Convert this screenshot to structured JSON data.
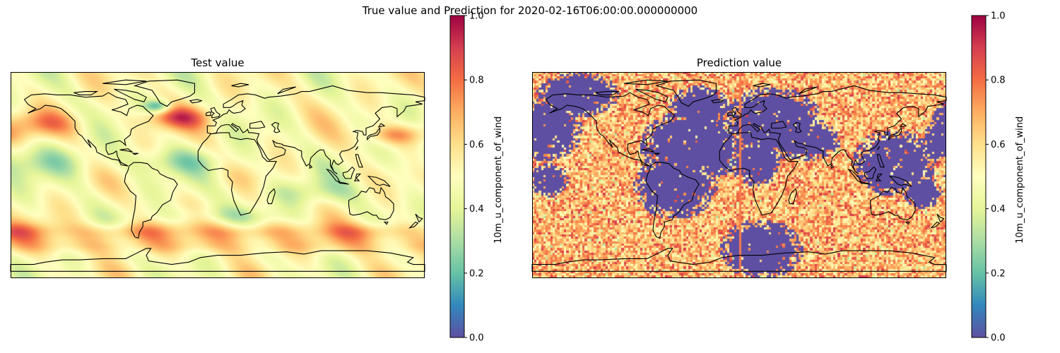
{
  "suptitle": "True value and Prediction for 2020-02-16T06:00:00.000000000",
  "colormap": {
    "name": "Spectral_r",
    "stops": [
      "#5e4fa2",
      "#3288bd",
      "#66c2a5",
      "#abdda4",
      "#e6f598",
      "#ffffbf",
      "#fee08b",
      "#fdae61",
      "#f46d43",
      "#d53e4f",
      "#9e0142"
    ]
  },
  "chart_data": [
    {
      "type": "heatmap",
      "title": "Test value",
      "variable": "10m_u_component_of_wind",
      "projection": "PlateCarree",
      "xlim": [
        -180,
        180
      ],
      "ylim": [
        -90,
        90
      ],
      "colorbar": {
        "label": "10m_u_component_of_wind",
        "vmin": 0.0,
        "vmax": 1.0,
        "ticks": [
          0.0,
          0.2,
          0.4,
          0.6,
          0.8,
          1.0
        ],
        "tick_labels": [
          "0.0",
          "0.2",
          "0.4",
          "0.6",
          "0.8",
          "1.0"
        ]
      },
      "field_description": "smooth normalized wind field, mostly 0.4–0.6; strong westerlies (~0.8) in North Atlantic, North Pacific and Southern Ocean; low values (~0.1) near Greenland/Labrador"
    },
    {
      "type": "heatmap",
      "title": "Prediction value",
      "variable": "10m_u_component_of_wind",
      "projection": "PlateCarree",
      "xlim": [
        -180,
        180
      ],
      "ylim": [
        -90,
        90
      ],
      "colorbar": {
        "label": "10m_u_component_of_wind",
        "vmin": 0.0,
        "vmax": 1.0,
        "ticks": [
          0.0,
          0.2,
          0.4,
          0.6,
          0.8,
          1.0
        ],
        "tick_labels": [
          "0.0",
          "0.2",
          "0.4",
          "0.6",
          "0.8",
          "1.0"
        ]
      },
      "field_description": "noisy pixelated field around 0.6–0.8 with large blobs of 0.0 over western North America, North/South Atlantic, Eurasia, western Pacific and the South Atlantic/Antarctic sector"
    }
  ]
}
